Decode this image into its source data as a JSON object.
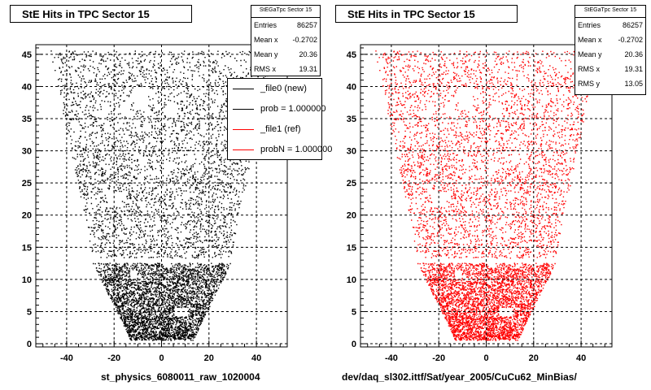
{
  "chart_data": [
    {
      "type": "scatter",
      "title": "StE Hits in TPC Sector 15",
      "xlabel": "st_physics_6080011_raw_1020004",
      "ylabel": "",
      "xlim": [
        -53,
        53
      ],
      "ylim": [
        -0.5,
        46.5
      ],
      "xticks": [
        -40,
        -20,
        0,
        20,
        40
      ],
      "yticks": [
        0,
        5,
        10,
        15,
        20,
        25,
        30,
        35,
        40,
        45
      ],
      "grid": true,
      "color": "#000000",
      "stats": {
        "name": "StEGaTpc Sector 15",
        "rows": [
          {
            "label": "Entries",
            "value": "86257"
          },
          {
            "label": "Mean x",
            "value": "-0.2702"
          },
          {
            "label": "Mean y",
            "value": "20.36"
          },
          {
            "label": "RMS x",
            "value": "19.31"
          }
        ]
      },
      "legend": [
        {
          "label": "_file0 (new)",
          "color": "#000000"
        },
        {
          "label": "prob = 1.000000",
          "color": "#000000"
        },
        {
          "label": "_file1 (ref)",
          "color": "#ff0000"
        },
        {
          "label": "probN = 1.000000",
          "color": "#ff0000"
        }
      ],
      "legend_position": "top-right",
      "shape": {
        "upper_rows": {
          "y": [
            13.5,
            45.5
          ],
          "x_half_width_at_y": [
            [
              13.5,
              29
            ],
            [
              45.5,
              47
            ]
          ]
        },
        "lower_rows": {
          "y": [
            0.5,
            12.5
          ],
          "x_half_width_at_y": [
            [
              0.5,
              13
            ],
            [
              12.5,
              29
            ]
          ]
        },
        "x_center_shift": 1
      }
    },
    {
      "type": "scatter",
      "title": "StE Hits in TPC Sector 15",
      "xlabel": "dev/daq_sl302.ittf/Sat/year_2005/CuCu62_MinBias/",
      "ylabel": "",
      "xlim": [
        -53,
        53
      ],
      "ylim": [
        -0.5,
        46.5
      ],
      "xticks": [
        -40,
        -20,
        0,
        20,
        40
      ],
      "yticks": [
        0,
        5,
        10,
        15,
        20,
        25,
        30,
        35,
        40,
        45
      ],
      "grid": true,
      "color": "#ff0000",
      "stats": {
        "name": "StEGaTpc Sector 15",
        "rows": [
          {
            "label": "Entries",
            "value": "86257"
          },
          {
            "label": "Mean x",
            "value": "-0.2702"
          },
          {
            "label": "Mean y",
            "value": "20.36"
          },
          {
            "label": "RMS x",
            "value": "19.31"
          },
          {
            "label": "RMS y",
            "value": "13.05"
          }
        ]
      }
    }
  ]
}
